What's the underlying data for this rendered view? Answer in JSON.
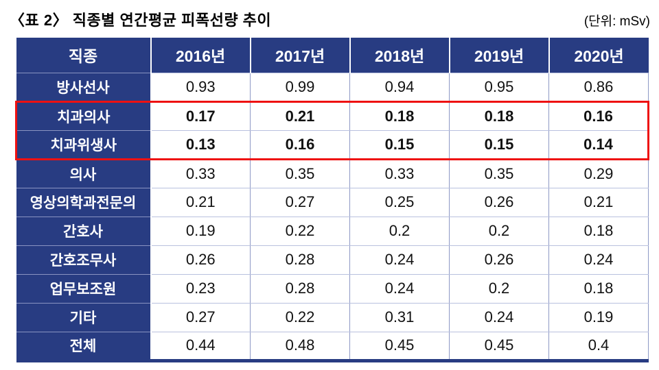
{
  "page": {
    "title": "〈표 2〉 직종별 연간평균 피폭선량 추이",
    "unit_label": "(단위: mSv)"
  },
  "colors": {
    "header_bg": "#283c82",
    "grid_v": "#8d98c5",
    "grid_h": "#b8c0de",
    "label_sep": "#8a94c2",
    "highlight_red": "#ee1111",
    "text": "#111111"
  },
  "highlight": {
    "rows": [
      "치과의사",
      "치과위생사"
    ],
    "style": "red-outline-box"
  },
  "chart_data": {
    "type": "table",
    "title": "직종별 연간평균 피폭선량 추이",
    "unit": "mSv",
    "columns": [
      "직종",
      "2016년",
      "2017년",
      "2018년",
      "2019년",
      "2020년"
    ],
    "rows": [
      {
        "label": "방사선사",
        "values": [
          "0.93",
          "0.99",
          "0.94",
          "0.95",
          "0.86"
        ],
        "highlight": false
      },
      {
        "label": "치과의사",
        "values": [
          "0.17",
          "0.21",
          "0.18",
          "0.18",
          "0.16"
        ],
        "highlight": true
      },
      {
        "label": "치과위생사",
        "values": [
          "0.13",
          "0.16",
          "0.15",
          "0.15",
          "0.14"
        ],
        "highlight": true
      },
      {
        "label": "의사",
        "values": [
          "0.33",
          "0.35",
          "0.33",
          "0.35",
          "0.29"
        ],
        "highlight": false
      },
      {
        "label": "영상의학과전문의",
        "values": [
          "0.21",
          "0.27",
          "0.25",
          "0.26",
          "0.21"
        ],
        "highlight": false
      },
      {
        "label": "간호사",
        "values": [
          "0.19",
          "0.22",
          "0.2",
          "0.2",
          "0.18"
        ],
        "highlight": false
      },
      {
        "label": "간호조무사",
        "values": [
          "0.26",
          "0.28",
          "0.24",
          "0.26",
          "0.24"
        ],
        "highlight": false
      },
      {
        "label": "업무보조원",
        "values": [
          "0.23",
          "0.28",
          "0.24",
          "0.2",
          "0.18"
        ],
        "highlight": false
      },
      {
        "label": "기타",
        "values": [
          "0.27",
          "0.22",
          "0.31",
          "0.24",
          "0.19"
        ],
        "highlight": false
      },
      {
        "label": "전체",
        "values": [
          "0.44",
          "0.48",
          "0.45",
          "0.45",
          "0.4"
        ],
        "highlight": false
      }
    ]
  }
}
